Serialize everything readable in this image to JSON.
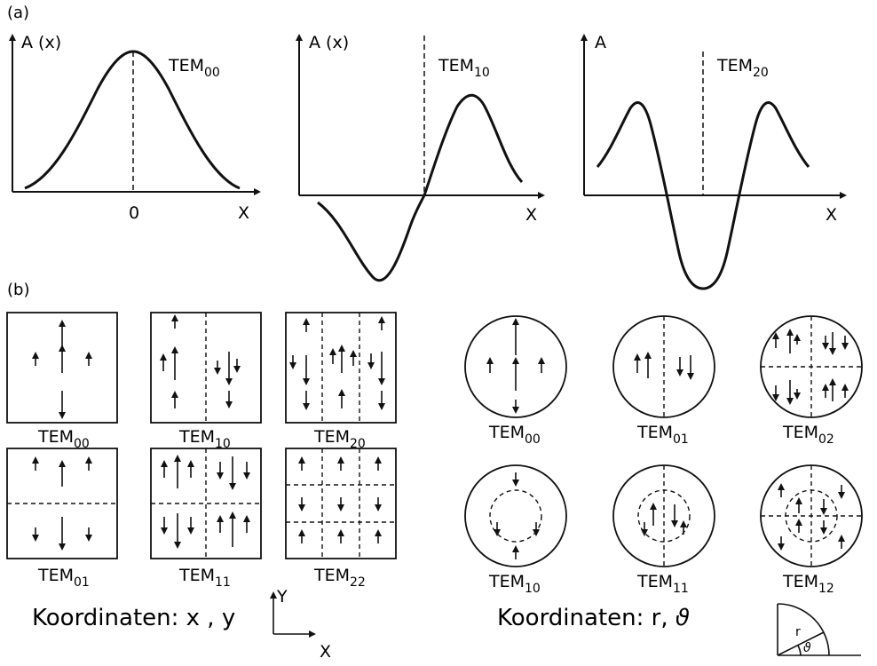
{
  "part_a": {
    "label": "(a)",
    "plots": [
      {
        "y_label": "A (x)",
        "mode": {
          "base": "TEM",
          "sub": "00"
        },
        "x_label": "X",
        "origin_label": "0"
      },
      {
        "y_label": "A (x)",
        "mode": {
          "base": "TEM",
          "sub": "10"
        },
        "x_label": "X"
      },
      {
        "y_label": "A",
        "mode": {
          "base": "TEM",
          "sub": "20"
        },
        "x_label": "X"
      }
    ]
  },
  "part_b": {
    "label": "(b)",
    "square_modes": [
      {
        "base": "TEM",
        "sub": "00"
      },
      {
        "base": "TEM",
        "sub": "10"
      },
      {
        "base": "TEM",
        "sub": "20"
      },
      {
        "base": "TEM",
        "sub": "01"
      },
      {
        "base": "TEM",
        "sub": "11"
      },
      {
        "base": "TEM",
        "sub": "22"
      }
    ],
    "circle_modes": [
      {
        "base": "TEM",
        "sub": "00"
      },
      {
        "base": "TEM",
        "sub": "01"
      },
      {
        "base": "TEM",
        "sub": "02"
      },
      {
        "base": "TEM",
        "sub": "10"
      },
      {
        "base": "TEM",
        "sub": "11"
      },
      {
        "base": "TEM",
        "sub": "12"
      }
    ],
    "cartesian_caption": "Koordinaten:  x , y",
    "cartesian_axes": {
      "y": "Y",
      "x": "X"
    },
    "polar_caption": "Koordinaten: r,",
    "polar_symbol": "ϑ",
    "polar_axes": {
      "r": "r",
      "theta": "ϑ"
    }
  }
}
